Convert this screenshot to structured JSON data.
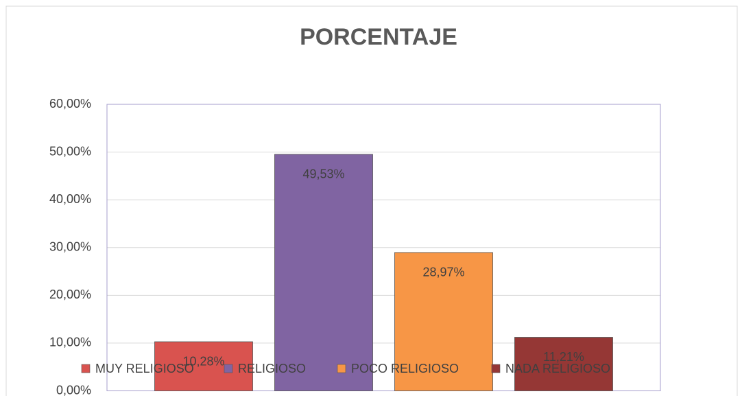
{
  "chart_data": {
    "type": "bar",
    "title": "PORCENTAJE",
    "categories": [
      null
    ],
    "series": [
      {
        "name": "MUY RELIGIOSO",
        "color": "#d9534f",
        "values": [
          10.28
        ],
        "value_labels": [
          "10,28%"
        ]
      },
      {
        "name": "RELIGIOSO",
        "color": "#8064a2",
        "values": [
          49.53
        ],
        "value_labels": [
          "49,53%"
        ]
      },
      {
        "name": "POCO RELIGIOSO",
        "color": "#f79646",
        "values": [
          28.97
        ],
        "value_labels": [
          "28,97%"
        ]
      },
      {
        "name": "NADA RELIGIOSO",
        "color": "#953735",
        "values": [
          11.21
        ],
        "value_labels": [
          "11,21%"
        ]
      }
    ],
    "ylim": [
      0,
      60
    ],
    "yticks": [
      {
        "value": 0,
        "label": "0,00%"
      },
      {
        "value": 10,
        "label": "10,00%"
      },
      {
        "value": 20,
        "label": "20,00%"
      },
      {
        "value": 30,
        "label": "30,00%"
      },
      {
        "value": 40,
        "label": "40,00%"
      },
      {
        "value": 50,
        "label": "50,00%"
      },
      {
        "value": 60,
        "label": "60,00%"
      }
    ],
    "grid": true,
    "legend": "bottom"
  }
}
